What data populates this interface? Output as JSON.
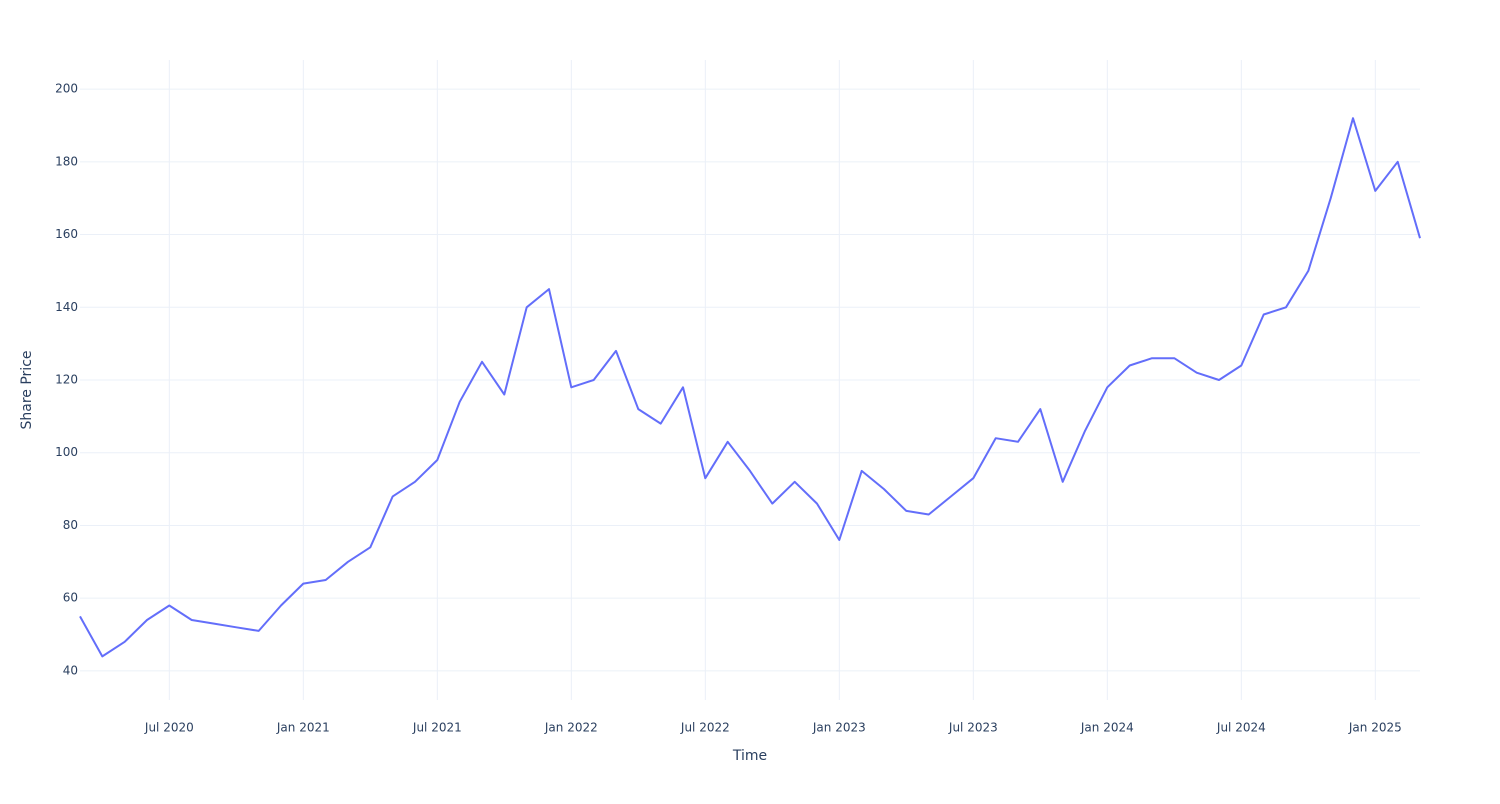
{
  "chart_data": {
    "type": "line",
    "x_title": "Time",
    "y_title": "Share Price",
    "x": [
      "2020-03",
      "2020-04",
      "2020-05",
      "2020-06",
      "2020-07",
      "2020-08",
      "2020-09",
      "2020-10",
      "2020-11",
      "2020-12",
      "2021-01",
      "2021-02",
      "2021-03",
      "2021-04",
      "2021-05",
      "2021-06",
      "2021-07",
      "2021-08",
      "2021-09",
      "2021-10",
      "2021-11",
      "2021-12",
      "2022-01",
      "2022-02",
      "2022-03",
      "2022-04",
      "2022-05",
      "2022-06",
      "2022-07",
      "2022-08",
      "2022-09",
      "2022-10",
      "2022-11",
      "2022-12",
      "2023-01",
      "2023-02",
      "2023-03",
      "2023-04",
      "2023-05",
      "2023-06",
      "2023-07",
      "2023-08",
      "2023-09",
      "2023-10",
      "2023-11",
      "2023-12",
      "2024-01",
      "2024-02",
      "2024-03",
      "2024-04",
      "2024-05",
      "2024-06",
      "2024-07",
      "2024-08",
      "2024-09",
      "2024-10",
      "2024-11",
      "2024-12",
      "2025-01",
      "2025-02",
      "2025-03"
    ],
    "series": [
      {
        "name": "Share Price",
        "color": "#636efa",
        "values": [
          55,
          44,
          48,
          54,
          58,
          54,
          53,
          52,
          51,
          58,
          64,
          65,
          70,
          74,
          88,
          92,
          98,
          114,
          125,
          116,
          140,
          145,
          118,
          120,
          128,
          112,
          108,
          118,
          93,
          103,
          95,
          86,
          92,
          86,
          76,
          95,
          90,
          84,
          83,
          88,
          93,
          104,
          103,
          112,
          92,
          106,
          118,
          124,
          126,
          126,
          122,
          120,
          124,
          138,
          140,
          150,
          170,
          192,
          172,
          180,
          159
        ]
      }
    ],
    "xlim": [
      "2020-03",
      "2025-03"
    ],
    "xticks": [
      {
        "value": "2020-07",
        "label": "Jul 2020"
      },
      {
        "value": "2021-01",
        "label": "Jan 2021"
      },
      {
        "value": "2021-07",
        "label": "Jul 2021"
      },
      {
        "value": "2022-01",
        "label": "Jan 2022"
      },
      {
        "value": "2022-07",
        "label": "Jul 2022"
      },
      {
        "value": "2023-01",
        "label": "Jan 2023"
      },
      {
        "value": "2023-07",
        "label": "Jul 2023"
      },
      {
        "value": "2024-01",
        "label": "Jan 2024"
      },
      {
        "value": "2024-07",
        "label": "Jul 2024"
      },
      {
        "value": "2025-01",
        "label": "Jan 2025"
      }
    ],
    "ylim": [
      32,
      208
    ],
    "yticks": [
      40,
      60,
      80,
      100,
      120,
      140,
      160,
      180,
      200
    ],
    "grid": true
  }
}
